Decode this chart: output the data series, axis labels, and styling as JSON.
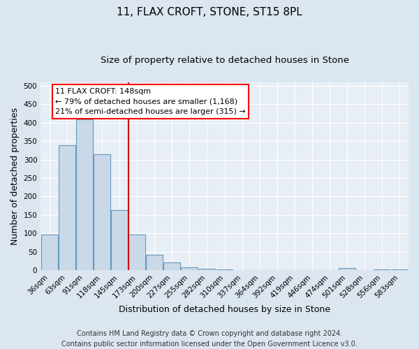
{
  "title": "11, FLAX CROFT, STONE, ST15 8PL",
  "subtitle": "Size of property relative to detached houses in Stone",
  "xlabel": "Distribution of detached houses by size in Stone",
  "ylabel": "Number of detached properties",
  "bar_labels": [
    "36sqm",
    "63sqm",
    "91sqm",
    "118sqm",
    "145sqm",
    "173sqm",
    "200sqm",
    "227sqm",
    "255sqm",
    "282sqm",
    "310sqm",
    "337sqm",
    "364sqm",
    "392sqm",
    "419sqm",
    "446sqm",
    "474sqm",
    "501sqm",
    "528sqm",
    "556sqm",
    "583sqm"
  ],
  "bar_values": [
    97,
    340,
    410,
    315,
    163,
    97,
    42,
    20,
    8,
    3,
    1,
    0,
    0,
    0,
    0,
    0,
    0,
    5,
    0,
    2,
    2
  ],
  "bar_color": "#c9d9e8",
  "bar_edge_color": "#6699bb",
  "vline_x_index": 4,
  "vline_color": "#cc0000",
  "ylim": [
    0,
    510
  ],
  "yticks": [
    0,
    50,
    100,
    150,
    200,
    250,
    300,
    350,
    400,
    450,
    500
  ],
  "annotation_line1": "11 FLAX CROFT: 148sqm",
  "annotation_line2": "← 79% of detached houses are smaller (1,168)",
  "annotation_line3": "21% of semi-detached houses are larger (315) →",
  "footer_text": "Contains HM Land Registry data © Crown copyright and database right 2024.\nContains public sector information licensed under the Open Government Licence v3.0.",
  "bg_color": "#dce6f0",
  "plot_bg_color": "#e8eef5",
  "grid_color": "#ffffff",
  "title_fontsize": 11,
  "subtitle_fontsize": 9.5,
  "axis_label_fontsize": 9,
  "tick_fontsize": 7.5,
  "footer_fontsize": 7,
  "ann_fontsize": 8
}
